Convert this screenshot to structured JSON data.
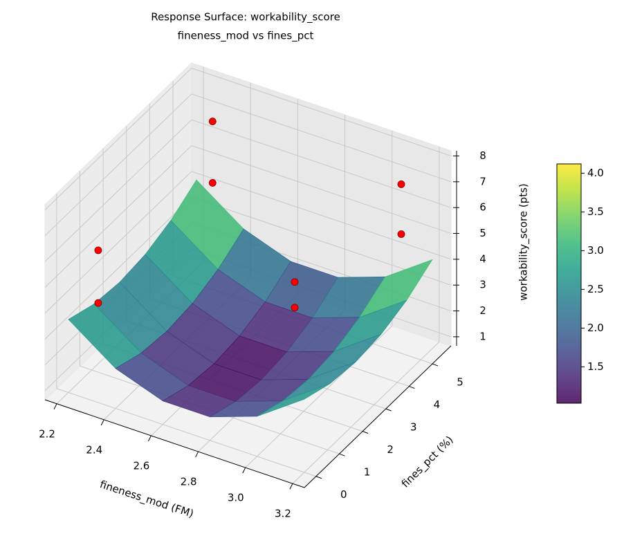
{
  "chart_data": {
    "type": "surface",
    "title": "Response Surface: workability_score",
    "subtitle": "fineness_mod vs fines_pct",
    "x_label": "fineness_mod (FM)",
    "y_label": "fines_pct (%)",
    "z_label": "workability_score (pts)",
    "xlim": [
      2.15,
      3.25
    ],
    "ylim": [
      -0.5,
      5.8
    ],
    "zlim": [
      0.65,
      8.2
    ],
    "xticks": [
      2.2,
      2.4,
      2.6,
      2.8,
      {
        "value": 3.0,
        "label": "3.0"
      },
      3.2
    ],
    "yticks": [
      0,
      1,
      2,
      3,
      4,
      5
    ],
    "zticks": [
      1,
      2,
      3,
      4,
      5,
      6,
      7,
      8
    ],
    "colormap": "viridis",
    "surface": {
      "alpha": 0.85,
      "x": [
        2.2,
        2.4,
        2.6,
        2.8,
        3.0,
        3.2
      ],
      "y": [
        0,
        1.1,
        2.2,
        3.3,
        4.4,
        5.5
      ],
      "z": [
        [
          3.48,
          3.12,
          3.0,
          3.12,
          3.48,
          4.09
        ],
        [
          2.2,
          1.84,
          1.72,
          1.84,
          2.2,
          2.81
        ],
        [
          1.56,
          1.2,
          1.08,
          1.2,
          1.56,
          2.17
        ],
        [
          1.56,
          1.2,
          1.08,
          1.2,
          1.56,
          2.17
        ],
        [
          2.2,
          1.84,
          1.72,
          1.84,
          2.2,
          2.81
        ],
        [
          3.48,
          3.12,
          3.0,
          3.12,
          3.48,
          4.09
        ]
      ]
    },
    "points": {
      "color": "#ff0000",
      "x": [
        2.3,
        2.3,
        2.2,
        2.2,
        2.9,
        2.9,
        3.1,
        3.1
      ],
      "y": [
        5.18,
        5.18,
        1.28,
        1.28,
        2.63,
        2.63,
        5.18,
        5.18
      ],
      "z": [
        6.94,
        4.56,
        5.04,
        3.0,
        4.8,
        3.81,
        6.98,
        5.05
      ]
    },
    "colorbar": {
      "clim": [
        1.03,
        4.12
      ],
      "ticks": [
        1.5,
        {
          "value": 2.0,
          "label": "2.0"
        },
        2.5,
        {
          "value": 3.0,
          "label": "3.0"
        },
        3.5,
        {
          "value": 4.0,
          "label": "4.0"
        }
      ]
    }
  }
}
